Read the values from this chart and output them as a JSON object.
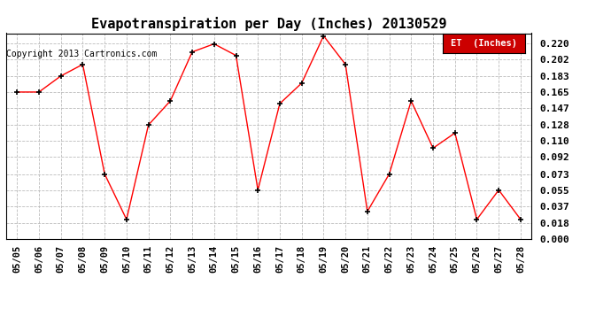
{
  "title": "Evapotranspiration per Day (Inches) 20130529",
  "copyright": "Copyright 2013 Cartronics.com",
  "legend_label": "ET  (Inches)",
  "dates": [
    "05/05",
    "05/06",
    "05/07",
    "05/08",
    "05/09",
    "05/10",
    "05/11",
    "05/12",
    "05/13",
    "05/14",
    "05/15",
    "05/16",
    "05/17",
    "05/18",
    "05/19",
    "05/20",
    "05/21",
    "05/22",
    "05/23",
    "05/24",
    "05/25",
    "05/26",
    "05/27",
    "05/28"
  ],
  "values": [
    0.165,
    0.165,
    0.183,
    0.196,
    0.073,
    0.022,
    0.128,
    0.155,
    0.21,
    0.219,
    0.206,
    0.055,
    0.152,
    0.175,
    0.228,
    0.196,
    0.031,
    0.073,
    0.155,
    0.102,
    0.119,
    0.022,
    0.055,
    0.022
  ],
  "ylim": [
    0.0,
    0.231
  ],
  "yticks": [
    0.0,
    0.018,
    0.037,
    0.055,
    0.073,
    0.092,
    0.11,
    0.128,
    0.147,
    0.165,
    0.183,
    0.202,
    0.22
  ],
  "line_color": "red",
  "marker_color": "black",
  "background_color": "#ffffff",
  "grid_color": "#bbbbbb",
  "legend_bg": "#cc0000",
  "legend_text_color": "white",
  "title_fontsize": 11,
  "copyright_fontsize": 7,
  "tick_fontsize": 7.5,
  "ytick_fontsize": 8
}
